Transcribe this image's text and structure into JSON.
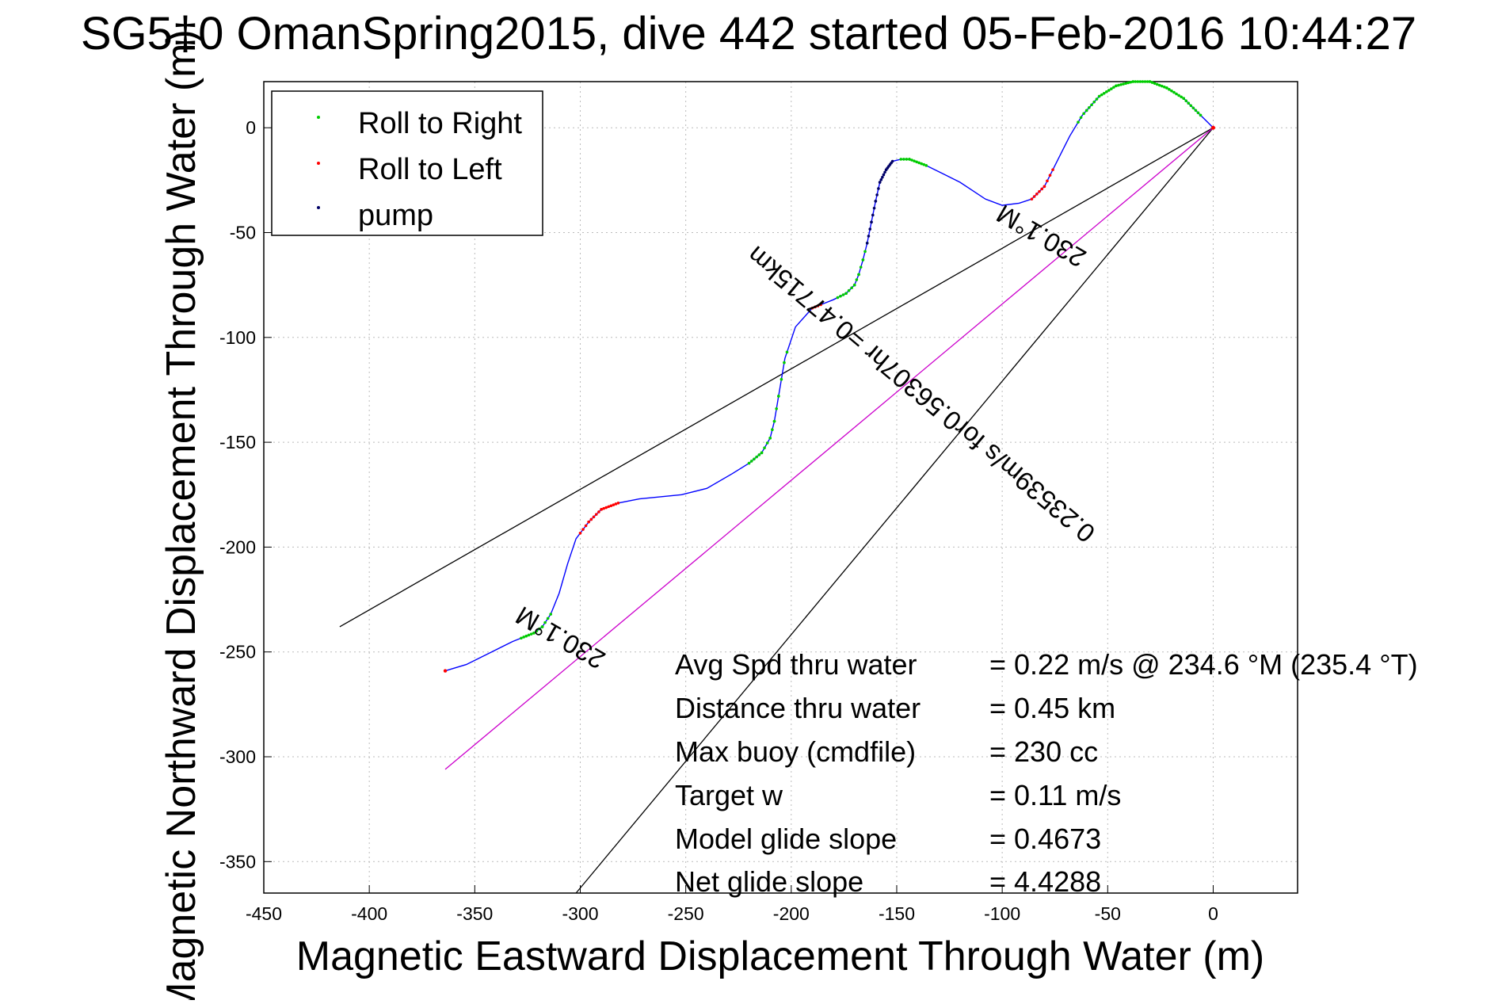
{
  "chart_data": {
    "type": "line",
    "title": "SG5‡0 OmanSpring2015, dive 442 started 05-Feb-2016 10:44:27",
    "xlabel": "Magnetic Eastward Displacement Through Water (m)",
    "ylabel": "Magnetic Northward Displacement Through Water (m)",
    "xlim": [
      -450,
      40
    ],
    "ylim": [
      -365,
      22
    ],
    "xticks": [
      -450,
      -400,
      -350,
      -300,
      -250,
      -200,
      -150,
      -100,
      -50,
      0
    ],
    "yticks": [
      0,
      -50,
      -100,
      -150,
      -200,
      -250,
      -300,
      -350
    ],
    "grid": true,
    "legend": {
      "placement": "top-left",
      "entries": [
        {
          "label": "Roll to Right",
          "color": "#00cc00",
          "marker": "dot"
        },
        {
          "label": "Roll to Left",
          "color": "#ff0000",
          "marker": "dot"
        },
        {
          "label": "pump",
          "color": "#000066",
          "marker": "dot"
        }
      ]
    },
    "track": {
      "name": "track",
      "color": "#0000ff",
      "x": [
        0,
        -6,
        -14,
        -22,
        -30,
        -38,
        -46,
        -54,
        -62,
        -68,
        -72,
        -76,
        -80,
        -86,
        -92,
        -100,
        -108,
        -114,
        -120,
        -128,
        -136,
        -144,
        -148,
        -152,
        -155,
        -158,
        -160,
        -162,
        -164,
        -166,
        -168,
        -170,
        -174,
        -180,
        -190,
        -198,
        -203,
        -206,
        -208,
        -210,
        -214,
        -220,
        -228,
        -240,
        -252,
        -262,
        -272,
        -282,
        -290,
        -296,
        -302,
        -306,
        -310,
        -314,
        -318,
        -322,
        -332,
        -342,
        -354,
        -364
      ],
      "y": [
        0,
        6,
        14,
        19,
        22,
        22,
        20,
        15,
        6,
        -4,
        -12,
        -20,
        -28,
        -34,
        -36,
        -37,
        -34,
        -30,
        -26,
        -22,
        -18,
        -15,
        -15,
        -16,
        -20,
        -26,
        -35,
        -45,
        -55,
        -63,
        -70,
        -75,
        -79,
        -82,
        -86,
        -95,
        -110,
        -128,
        -140,
        -148,
        -155,
        -160,
        -165,
        -172,
        -175,
        -176,
        -177,
        -179,
        -182,
        -188,
        -196,
        -208,
        -222,
        -232,
        -238,
        -241,
        -245,
        -250,
        -256,
        -259
      ]
    },
    "roll_right_segments": [
      {
        "x": [
          -6,
          -14,
          -22,
          -30,
          -38,
          -46,
          -54,
          -60,
          -64
        ]
      },
      {
        "x": [
          -136,
          -144,
          -148
        ]
      },
      {
        "x": [
          -164,
          -166,
          -168,
          -170,
          -174,
          -178
        ]
      },
      {
        "x": [
          -202,
          -206,
          -208,
          -210,
          -214,
          -220
        ]
      },
      {
        "x": [
          -314,
          -318,
          -322,
          -328
        ]
      }
    ],
    "roll_left_segments": [
      {
        "x": [
          -76,
          -80,
          -86
        ]
      },
      {
        "x": [
          -282,
          -290,
          -296,
          -300
        ]
      },
      {
        "x": [
          -186,
          -190
        ]
      },
      {
        "x": [
          -364
        ]
      }
    ],
    "pump_segment": {
      "x": [
        -152,
        -155,
        -158,
        -160,
        -162,
        -164
      ]
    },
    "reference_lines": [
      {
        "name": "heading-line-upper",
        "color": "#000000",
        "x": [
          0,
          -414
        ],
        "y": [
          0,
          -238
        ]
      },
      {
        "name": "heading-line-lower",
        "color": "#000000",
        "x": [
          0,
          -302
        ],
        "y": [
          0,
          -365
        ]
      },
      {
        "name": "speed-line",
        "color": "#cc00cc",
        "x": [
          0,
          -364
        ],
        "y": [
          0,
          -306
        ]
      }
    ],
    "annotations": {
      "heading_upper": "230.1°M",
      "speed_line": "0.23539m/s for0.56307hr =0.47715km",
      "heading_lower": "230.1°M"
    },
    "stats": [
      {
        "label": "Avg Spd thru water",
        "value": "=  0.22 m/s @ 234.6 °M (235.4 °T)"
      },
      {
        "label": "Distance thru water",
        "value": "=  0.45 km"
      },
      {
        "label": "Max buoy (cmdfile)",
        "value": "= 230 cc"
      },
      {
        "label": "Target w",
        "value": "= 0.11 m/s"
      },
      {
        "label": "Model glide slope",
        "value": "= 0.4673"
      },
      {
        "label": "Net glide slope",
        "value": "= 4.4288"
      }
    ]
  }
}
